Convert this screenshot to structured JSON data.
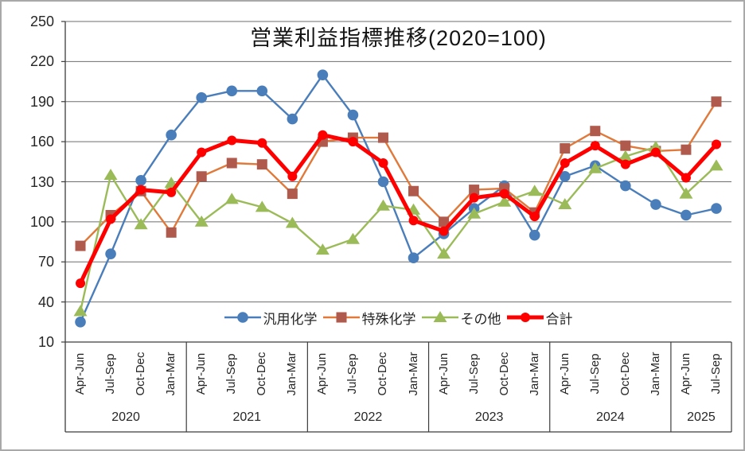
{
  "chart_data": {
    "type": "line",
    "title": "営業利益指標推移(2020=100)",
    "grid": true,
    "legend_position": "bottom-inside",
    "y_axis": {
      "min": 10,
      "max": 250,
      "step": 30,
      "ticks": [
        250,
        220,
        190,
        160,
        130,
        100,
        70,
        40,
        10
      ]
    },
    "x_axis": {
      "quarter_labels": [
        "Apr-Jun",
        "Jul-Sep",
        "Oct-Dec",
        "Jan-Mar",
        "Apr-Jun",
        "Jul-Sep",
        "Oct-Dec",
        "Jan-Mar",
        "Apr-Jun",
        "Jul-Sep",
        "Oct-Dec",
        "Jan-Mar",
        "Apr-Jun",
        "Jul-Sep",
        "Oct-Dec",
        "Jan-Mar",
        "Apr-Jun",
        "Jul-Sep",
        "Oct-Dec",
        "Jan-Mar",
        "Apr-Jun",
        "Jul-Sep"
      ],
      "year_groups": [
        {
          "label": "2020",
          "count": 4
        },
        {
          "label": "2021",
          "count": 4
        },
        {
          "label": "2022",
          "count": 4
        },
        {
          "label": "2023",
          "count": 4
        },
        {
          "label": "2024",
          "count": 4
        },
        {
          "label": "2025",
          "count": 2
        }
      ]
    },
    "series": [
      {
        "name": "汎用化学",
        "marker": "circle",
        "line_color": "#4A7EBB",
        "marker_color": "#4A7EBB",
        "line_width": 2.4,
        "values": [
          25,
          76,
          131,
          165,
          193,
          198,
          198,
          177,
          210,
          180,
          130,
          73,
          91,
          110,
          127,
          90,
          134,
          142,
          127,
          113,
          105,
          110
        ]
      },
      {
        "name": "特殊化学",
        "marker": "square",
        "line_color": "#E0793A",
        "marker_color": "#B05A4D",
        "line_width": 2.4,
        "values": [
          82,
          105,
          123,
          92,
          134,
          144,
          143,
          121,
          160,
          163,
          163,
          123,
          100,
          124,
          125,
          107,
          155,
          168,
          157,
          153,
          154,
          190
        ]
      },
      {
        "name": "その他",
        "marker": "triangle",
        "line_color": "#9BBB59",
        "marker_color": "#9BBB59",
        "line_width": 2.4,
        "values": [
          33,
          135,
          98,
          129,
          100,
          117,
          111,
          99,
          79,
          87,
          112,
          109,
          76,
          106,
          115,
          123,
          113,
          140,
          149,
          156,
          121,
          142
        ]
      },
      {
        "name": "合計",
        "marker": "dot",
        "line_color": "#FF0000",
        "marker_color": "#FF0000",
        "line_width": 5,
        "values": [
          54,
          102,
          124,
          122,
          152,
          161,
          159,
          134,
          165,
          160,
          144,
          101,
          93,
          118,
          121,
          104,
          144,
          157,
          143,
          152,
          133,
          158
        ]
      }
    ]
  },
  "colors": {
    "grid": "#6E6E6E",
    "axis": "#3C3C3C",
    "text": "#262626",
    "frame_border": "#A9A9A9",
    "background": "#FFFFFF"
  }
}
